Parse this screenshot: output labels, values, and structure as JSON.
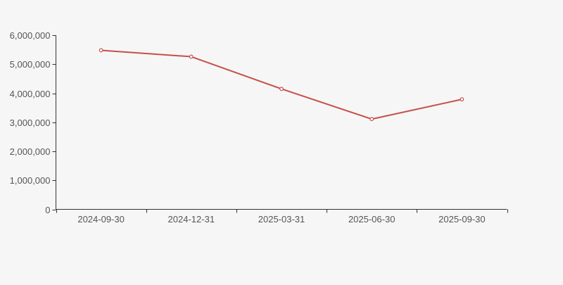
{
  "background_color": "#f6f6f6",
  "chart_data": {
    "type": "line",
    "title": "",
    "xlabel": "",
    "ylabel": "",
    "categories": [
      "2024-09-30",
      "2024-12-31",
      "2025-03-31",
      "2025-06-30",
      "2025-09-30"
    ],
    "values": [
      5480000,
      5260000,
      4150000,
      3110000,
      3790000
    ],
    "ylim": [
      0,
      6000000
    ],
    "y_ticks": [
      0,
      1000000,
      2000000,
      3000000,
      4000000,
      5000000,
      6000000
    ],
    "y_tick_labels": [
      "0",
      "1,000,000",
      "2,000,000",
      "3,000,000",
      "4,000,000",
      "5,000,000",
      "6,000,000"
    ],
    "grid": false,
    "legend": false,
    "x_axis_boundary_gap": true,
    "marker_style": "open-circle",
    "line_color": "#c4504b",
    "marker_fill": "#ffffff",
    "axis_color": "#333333",
    "tick_label_color": "#555555"
  }
}
